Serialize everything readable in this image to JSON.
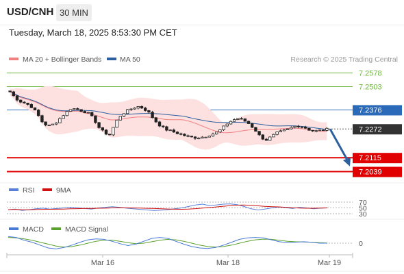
{
  "header": {
    "pair": "USD/CNH",
    "interval": "30 MIN",
    "datetime": "Tuesday, March 18, 2025 8:53:30 PM CET"
  },
  "legend": {
    "ma20_label": "MA 20 + Bollinger Bands",
    "ma50_label": "MA 50",
    "attribution": "Research © 2025 Trading Central",
    "rsi_label": "RSI",
    "rsi_ma_label": "9MA",
    "macd_label": "MACD",
    "macd_signal_label": "MACD Signal"
  },
  "colors": {
    "ma20": "#f08080",
    "bollinger_fill": "#fde0e0",
    "ma50": "#2d5f9e",
    "candle_up": "#ffffff",
    "candle_down": "#222222",
    "green_level": "#6cb33f",
    "blue_level": "#2a6ab8",
    "red_level": "#e00000",
    "current_price": "#333333",
    "rsi": "#5b7fd6",
    "rsi_ma": "#d01010",
    "macd": "#4a7ad6",
    "macd_signal": "#5aa02c",
    "arrow": "#2d5f9e"
  },
  "chart_data": [
    {
      "type": "candlestick",
      "title": "USD/CNH 30 MIN",
      "x_ticks": [
        "Mar 16",
        "Mar 18",
        "Mar 19"
      ],
      "ylim": [
        7.2039,
        7.2578
      ],
      "levels": [
        {
          "value": 7.2578,
          "label": "7.2578",
          "kind": "resistance"
        },
        {
          "value": 7.2503,
          "label": "7.2503",
          "kind": "resistance"
        },
        {
          "value": 7.2376,
          "label": "7.2376",
          "kind": "pivot"
        },
        {
          "value": 7.2272,
          "label": "7.2272",
          "kind": "current"
        },
        {
          "value": 7.2115,
          "label": "7.2115",
          "kind": "target"
        },
        {
          "value": 7.2039,
          "label": "7.2039",
          "kind": "target"
        }
      ],
      "price_path": [
        7.2475,
        7.244,
        7.242,
        7.241,
        7.239,
        7.235,
        7.23,
        7.229,
        7.23,
        7.233,
        7.236,
        7.2385,
        7.238,
        7.237,
        7.236,
        7.233,
        7.228,
        7.225,
        7.224,
        7.231,
        7.235,
        7.237,
        7.2385,
        7.2395,
        7.2385,
        7.236,
        7.232,
        7.229,
        7.227,
        7.226,
        7.225,
        7.224,
        7.223,
        7.2225,
        7.2225,
        7.223,
        7.224,
        7.225,
        7.227,
        7.23,
        7.232,
        7.233,
        7.232,
        7.23,
        7.227,
        7.223,
        7.221,
        7.223,
        7.225,
        7.226,
        7.227,
        7.2285,
        7.229,
        7.228,
        7.2265,
        7.226,
        7.2265,
        7.227
      ],
      "series": [
        {
          "name": "MA 20 + Bollinger Bands"
        },
        {
          "name": "MA 50"
        }
      ],
      "forecast_arrow": {
        "from": 7.2272,
        "to": 7.209
      }
    },
    {
      "type": "line",
      "series": [
        {
          "name": "RSI"
        },
        {
          "name": "9MA"
        }
      ],
      "ylim": [
        30,
        70
      ],
      "y_ticks": [
        "70",
        "50",
        "30"
      ],
      "rsi_path": [
        44,
        46,
        41,
        44,
        47,
        49,
        46,
        48,
        50,
        52,
        50,
        48,
        46,
        50,
        52,
        54,
        52,
        49,
        47,
        45,
        43,
        41,
        42,
        44,
        47,
        50,
        55,
        60,
        63,
        58,
        60,
        63,
        64,
        61,
        55,
        47,
        43,
        46,
        50,
        53,
        51,
        48,
        52,
        50,
        47,
        49,
        50
      ]
    },
    {
      "type": "line",
      "series": [
        {
          "name": "MACD"
        },
        {
          "name": "MACD Signal"
        }
      ],
      "y_ticks": [
        "0"
      ],
      "macd_path": [
        0.7,
        0.6,
        0.3,
        0.1,
        -0.2,
        -0.5,
        -0.6,
        -0.45,
        -0.2,
        0.1,
        0.35,
        0.45,
        0.4,
        0.2,
        -0.05,
        -0.25,
        -0.1,
        0.2,
        0.5,
        0.6,
        0.5,
        0.2,
        -0.1,
        -0.35,
        -0.5,
        -0.55,
        -0.45,
        -0.2,
        0.1,
        0.4,
        0.55,
        0.6,
        0.55,
        0.35,
        0.15,
        0.05,
        0.1,
        0.15,
        0.1,
        0.0,
        0.0
      ],
      "signal_path": [
        0.6,
        0.55,
        0.45,
        0.3,
        0.1,
        -0.1,
        -0.3,
        -0.4,
        -0.35,
        -0.2,
        0.0,
        0.2,
        0.3,
        0.32,
        0.2,
        0.05,
        -0.05,
        0.0,
        0.15,
        0.3,
        0.4,
        0.35,
        0.2,
        0.0,
        -0.2,
        -0.35,
        -0.4,
        -0.35,
        -0.2,
        0.0,
        0.2,
        0.35,
        0.42,
        0.4,
        0.3,
        0.2,
        0.15,
        0.12,
        0.1,
        0.05,
        0.02
      ]
    }
  ]
}
